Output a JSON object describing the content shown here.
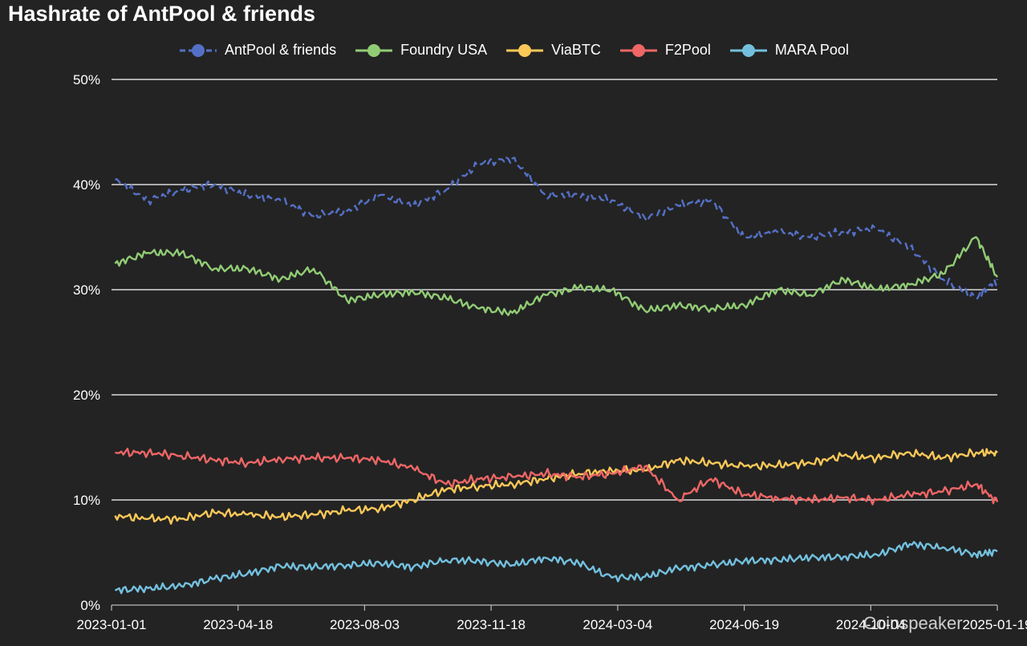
{
  "title": "Hashrate of AntPool & friends",
  "watermark": "Coinspeaker",
  "chart_data": {
    "type": "line",
    "title": "Hashrate of AntPool & friends",
    "xlabel": "",
    "ylabel": "",
    "grid": true,
    "legend_position": "top-center",
    "x_range": [
      "2023-01-04",
      "2025-01-19"
    ],
    "ylim": [
      0,
      50
    ],
    "y_ticks": [
      0,
      10,
      20,
      30,
      40,
      50
    ],
    "y_tick_labels": [
      "0%",
      "10%",
      "20%",
      "30%",
      "40%",
      "50%"
    ],
    "x_ticks": [
      "2023-01-01",
      "2023-04-18",
      "2023-08-03",
      "2023-11-18",
      "2024-03-04",
      "2024-06-19",
      "2024-10-04",
      "2025-01-19"
    ],
    "x": [
      "2023-01-04",
      "2023-02-01",
      "2023-03-01",
      "2023-03-29",
      "2023-04-26",
      "2023-05-24",
      "2023-06-21",
      "2023-07-19",
      "2023-08-16",
      "2023-09-13",
      "2023-10-11",
      "2023-11-08",
      "2023-12-06",
      "2024-01-03",
      "2024-01-31",
      "2024-02-28",
      "2024-03-27",
      "2024-04-24",
      "2024-05-22",
      "2024-06-19",
      "2024-07-17",
      "2024-08-14",
      "2024-09-11",
      "2024-10-09",
      "2024-11-06",
      "2024-12-04",
      "2025-01-01",
      "2025-01-19"
    ],
    "series": [
      {
        "name": "AntPool & friends",
        "color": "#5470c6",
        "dashed": true,
        "values": [
          40.5,
          38.5,
          39.5,
          40,
          39,
          38.5,
          37,
          37.5,
          39,
          38,
          39.5,
          42,
          42.5,
          39,
          39,
          38.5,
          36.8,
          38,
          38.5,
          35,
          35.5,
          35,
          35.5,
          35.8,
          34,
          31,
          29.2,
          31
        ]
      },
      {
        "name": "Foundry USA",
        "color": "#91cc75",
        "dashed": false,
        "values": [
          32.5,
          33.5,
          33.5,
          32,
          32,
          31,
          32,
          29,
          29.5,
          29.8,
          29.2,
          28.2,
          27.8,
          29.5,
          30.2,
          30,
          28,
          28.5,
          28.2,
          28.5,
          30,
          29.5,
          31,
          30,
          30.5,
          31.5,
          35,
          31.2
        ]
      },
      {
        "name": "ViaBTC",
        "color": "#fac858",
        "dashed": false,
        "values": [
          8.5,
          8.2,
          8.2,
          8.8,
          8.6,
          8.4,
          8.6,
          9,
          9.2,
          10,
          11,
          11.3,
          11.5,
          12,
          12.5,
          12.8,
          12.8,
          13.8,
          13.5,
          13.2,
          13.3,
          13.5,
          14.2,
          14,
          14.5,
          14,
          14.5,
          14.5
        ]
      },
      {
        "name": "F2Pool",
        "color": "#ee6666",
        "dashed": false,
        "values": [
          14.5,
          14.5,
          14.2,
          13.8,
          13.5,
          13.9,
          14,
          14,
          13.8,
          13,
          11.5,
          12,
          12.2,
          12.5,
          12.2,
          12.5,
          13.2,
          10,
          12,
          10.5,
          10.2,
          10,
          10.2,
          10,
          10.5,
          10.8,
          11.5,
          9.8
        ]
      },
      {
        "name": "MARA Pool",
        "color": "#73c0de",
        "dashed": false,
        "values": [
          1.4,
          1.6,
          1.8,
          2.5,
          3,
          3.7,
          3.6,
          3.8,
          4,
          3.6,
          4.3,
          4.2,
          3.8,
          4.5,
          4,
          2.6,
          2.7,
          3.5,
          3.8,
          4.2,
          4.3,
          4.5,
          4.6,
          4.8,
          5.8,
          5.5,
          4.8,
          5.1
        ]
      }
    ]
  }
}
